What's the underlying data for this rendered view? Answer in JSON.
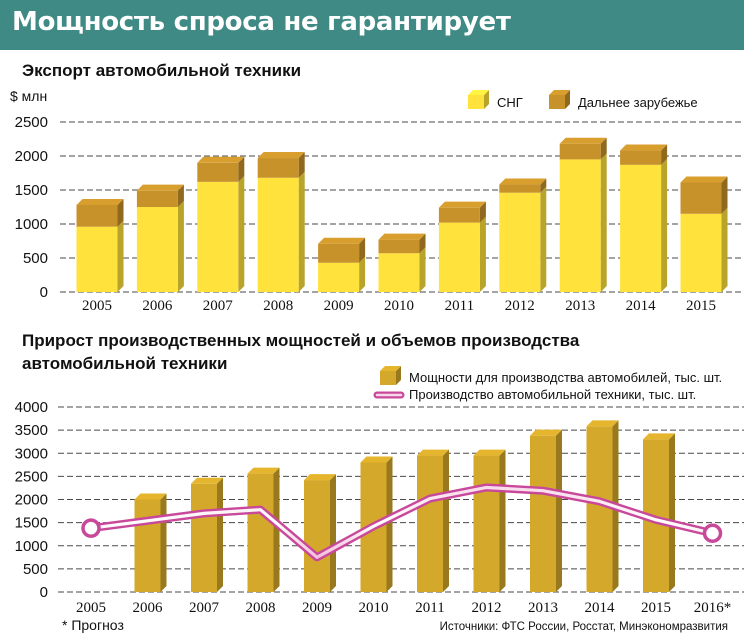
{
  "banner": {
    "title": "Мощность спроса не гарантирует"
  },
  "chart_data": [
    {
      "type": "bar",
      "stacked": true,
      "title": "Экспорт автомобильной техники",
      "ylabel": "$ млн",
      "ylim": [
        0,
        2500
      ],
      "yticks": [
        "0",
        "500",
        "1000",
        "1500",
        "2000",
        "2500"
      ],
      "grid": true,
      "legend_position": "top-right",
      "categories": [
        "2005",
        "2006",
        "2007",
        "2008",
        "2009",
        "2010",
        "2011",
        "2012",
        "2013",
        "2014",
        "2015"
      ],
      "series": [
        {
          "name": "СНГ",
          "color": "#ffe23c",
          "values": [
            960,
            1250,
            1620,
            1680,
            430,
            570,
            1020,
            1460,
            1950,
            1870,
            1150
          ]
        },
        {
          "name": "Дальнее зарубежье",
          "color": "#c8922b",
          "values": [
            320,
            240,
            280,
            290,
            280,
            200,
            220,
            120,
            230,
            210,
            460
          ]
        }
      ]
    },
    {
      "type": "bar+line",
      "title": "Прирост производственных мощностей и объемов производства автомобильной техники",
      "ylim": [
        0,
        4000
      ],
      "yticks": [
        "0",
        "500",
        "1000",
        "1500",
        "2000",
        "2500",
        "3000",
        "3500",
        "4000"
      ],
      "grid": true,
      "legend_position": "top-right",
      "categories": [
        "2005",
        "2006",
        "2007",
        "2008",
        "2009",
        "2010",
        "2011",
        "2012",
        "2013",
        "2014",
        "2015",
        "2016*"
      ],
      "series": [
        {
          "name": "Мощности для производства автомобилей, тыс. шт.",
          "kind": "bar",
          "color": "#d4a82a",
          "values": [
            null,
            2000,
            2340,
            2560,
            2420,
            2800,
            2950,
            2950,
            3380,
            3580,
            3300,
            null
          ]
        },
        {
          "name": "Производство автомобильной техники, тыс. шт.",
          "kind": "line",
          "color": "#c8489a",
          "values": [
            1380,
            1540,
            1700,
            1780,
            750,
            1420,
            2020,
            2260,
            2190,
            1960,
            1560,
            1270
          ]
        }
      ],
      "footnote": "* Прогноз",
      "source": "Источники: ФТС России, Росстат, Минэкономразвития"
    }
  ]
}
